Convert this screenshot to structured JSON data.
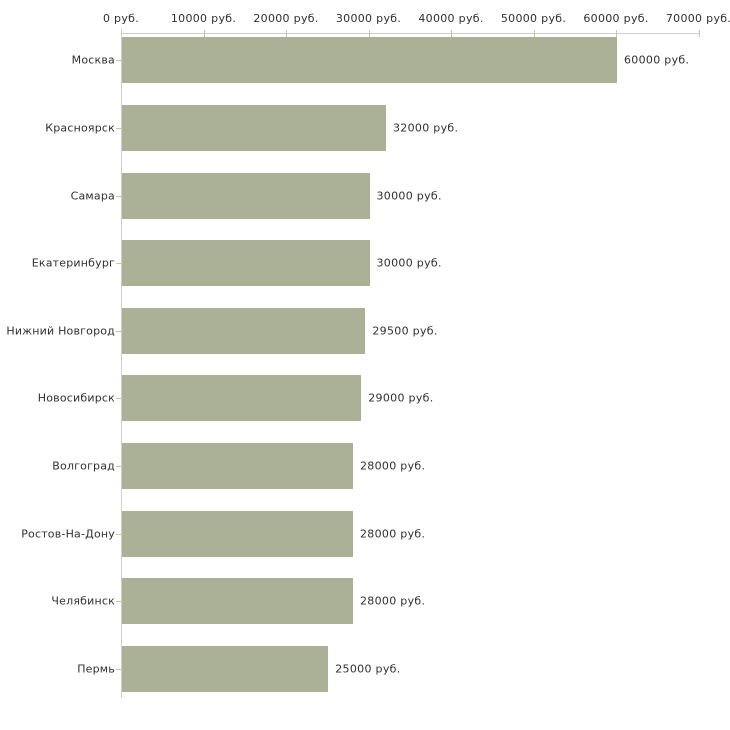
{
  "chart_data": {
    "type": "bar",
    "orientation": "horizontal",
    "title": "",
    "xlabel": "",
    "ylabel": "",
    "unit": "руб.",
    "categories": [
      "Москва",
      "Красноярск",
      "Самара",
      "Екатеринбург",
      "Нижний Новгород",
      "Новосибирск",
      "Волгоград",
      "Ростов-На-Дону",
      "Челябинск",
      "Пермь"
    ],
    "values": [
      60000,
      32000,
      30000,
      30000,
      29500,
      29000,
      28000,
      28000,
      28000,
      25000
    ],
    "value_labels": [
      "60000 руб.",
      "32000 руб.",
      "30000 руб.",
      "30000 руб.",
      "29500 руб.",
      "29000 руб.",
      "28000 руб.",
      "28000 руб.",
      "28000 руб.",
      "25000 руб."
    ],
    "x_axis": {
      "min": 0,
      "max": 70000,
      "tick_step": 10000,
      "position": "top",
      "tick_labels": [
        "0 руб.",
        "10000 руб.",
        "20000 руб.",
        "30000 руб.",
        "40000 руб.",
        "50000 руб.",
        "60000 руб.",
        "70000 руб."
      ]
    },
    "grid": "off",
    "legend": "none",
    "colors": {
      "bar": "#abb196",
      "axis_line": "#cfcfc8",
      "tick": "#c6c8a6",
      "text": "#303030",
      "background": "#ffffff"
    }
  }
}
